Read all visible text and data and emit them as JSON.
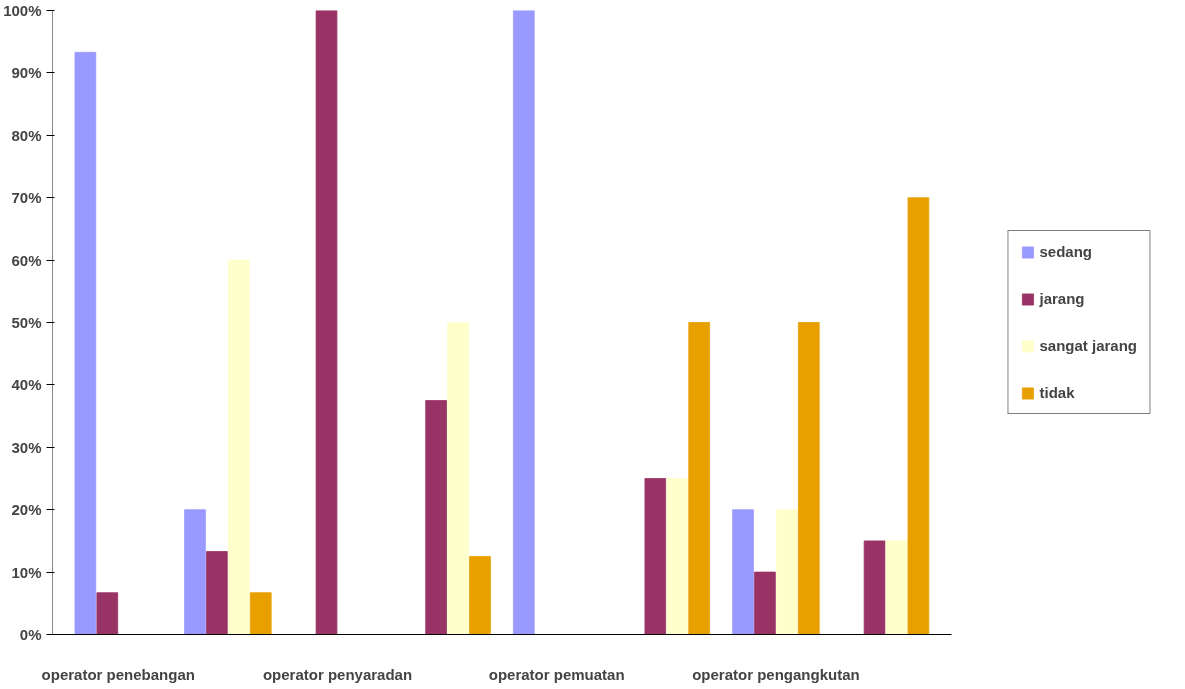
{
  "chart_data": {
    "type": "bar",
    "categories": [
      "operator penebangan",
      null,
      "operator penyaradan",
      null,
      "operator pemuatan",
      null,
      "operator pengangkutan",
      null
    ],
    "series": [
      {
        "name": "sedang",
        "color": "#9999ff",
        "values": [
          93.3,
          20,
          0,
          0,
          100,
          0,
          20,
          0
        ]
      },
      {
        "name": "jarang",
        "color": "#993366",
        "values": [
          6.7,
          13.3,
          100,
          37.5,
          0,
          25,
          10,
          15
        ]
      },
      {
        "name": "sangat jarang",
        "color": "#ffffcc",
        "values": [
          0,
          60,
          0,
          50,
          0,
          25,
          20,
          15
        ]
      },
      {
        "name": "tidak",
        "color": "#e8a000",
        "values": [
          0,
          6.7,
          0,
          12.5,
          0,
          50,
          50,
          70
        ]
      }
    ],
    "ylim": [
      0,
      100
    ],
    "yticks": [
      {
        "value": 0,
        "label": "0%"
      },
      {
        "value": 10,
        "label": "10%"
      },
      {
        "value": 20,
        "label": "20%"
      },
      {
        "value": 30,
        "label": "30%"
      },
      {
        "value": 40,
        "label": "40%"
      },
      {
        "value": 50,
        "label": "50%"
      },
      {
        "value": 60,
        "label": "60%"
      },
      {
        "value": 70,
        "label": "70%"
      },
      {
        "value": 80,
        "label": "80%"
      },
      {
        "value": 90,
        "label": "90%"
      },
      {
        "value": 100,
        "label": "100%"
      }
    ],
    "legend": "right",
    "grid": false
  }
}
